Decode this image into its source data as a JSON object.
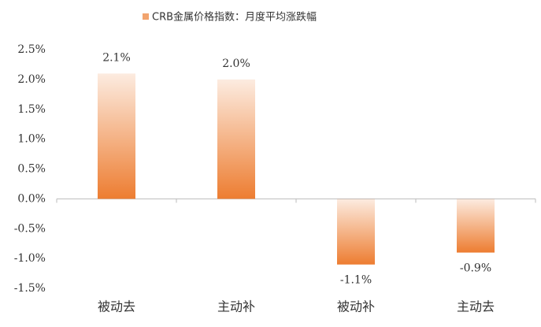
{
  "chart_data": {
    "type": "bar",
    "series": [
      {
        "name": "CRB金属价格指数：月度平均涨跌幅",
        "color": "#ed7d31",
        "values": [
          2.1,
          2.0,
          -1.1,
          -0.9
        ],
        "value_labels": [
          "2.1%",
          "2.0%",
          "-1.1%",
          "-0.9%"
        ]
      }
    ],
    "categories": [
      "被动去",
      "主动补",
      "被动补",
      "主动去"
    ],
    "ylim": [
      -1.5,
      2.5
    ],
    "yticks": [
      {
        "value": -1.5,
        "label": "-1.5%"
      },
      {
        "value": -1.0,
        "label": "-1.0%"
      },
      {
        "value": -0.5,
        "label": "-0.5%"
      },
      {
        "value": 0,
        "label": "0.0%"
      },
      {
        "value": 0.5,
        "label": "0.5%"
      },
      {
        "value": 1.0,
        "label": "1.0%"
      },
      {
        "value": 1.5,
        "label": "1.5%"
      },
      {
        "value": 2.0,
        "label": "2.0%"
      },
      {
        "value": 2.5,
        "label": "2.5%"
      }
    ],
    "grid": false,
    "legend": "top"
  }
}
